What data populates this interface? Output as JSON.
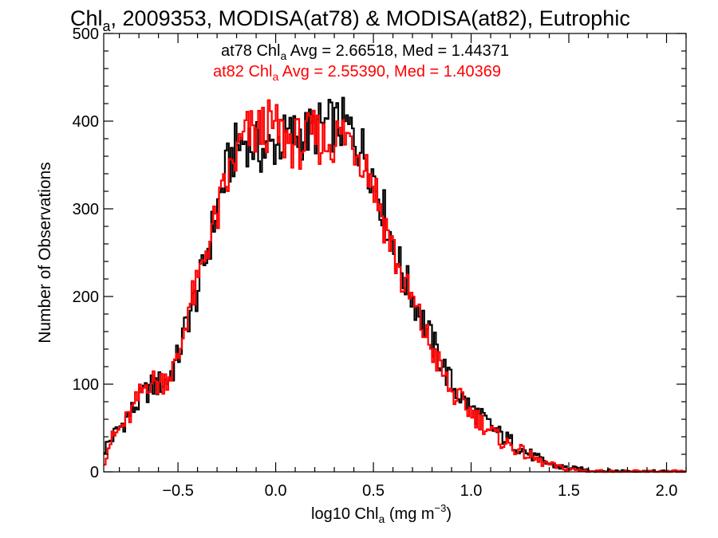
{
  "chart_data": {
    "type": "line",
    "step": true,
    "title": {
      "prefix": "Chl",
      "sub": "a",
      "rest": ", 2009353, MODISA(at78) & MODISA(at82), Eutrophic"
    },
    "xlabel": {
      "prefix": "log10 Chl",
      "sub": "a",
      "mid": " (mg m",
      "sup": "−3",
      "end": ")"
    },
    "ylabel": "Number of Observations",
    "xlim": [
      -0.88,
      2.1
    ],
    "ylim": [
      0,
      500
    ],
    "xticks": [
      -0.5,
      0.0,
      0.5,
      1.0,
      1.5,
      2.0
    ],
    "xtick_labels": [
      "−0.5",
      "0.0",
      "0.5",
      "1.0",
      "1.5",
      "2.0"
    ],
    "yticks": [
      0,
      100,
      200,
      300,
      400,
      500
    ],
    "ytick_labels": [
      "0",
      "100",
      "200",
      "300",
      "400",
      "500"
    ],
    "annotations": [
      {
        "prefix": "at78 Chl",
        "sub": "a",
        "rest": " Avg = 2.66518, Med = 1.44371",
        "color": "#000000"
      },
      {
        "prefix": "at82 Chl",
        "sub": "a",
        "rest": " Avg = 2.55390, Med = 1.40369",
        "color": "#ff0000"
      }
    ],
    "anchors": {
      "x": [
        -0.88,
        -0.85,
        -0.8,
        -0.75,
        -0.7,
        -0.65,
        -0.6,
        -0.55,
        -0.5,
        -0.45,
        -0.4,
        -0.35,
        -0.3,
        -0.25,
        -0.2,
        -0.15,
        -0.1,
        -0.05,
        0.0,
        0.05,
        0.1,
        0.15,
        0.2,
        0.25,
        0.3,
        0.35,
        0.4,
        0.45,
        0.5,
        0.55,
        0.6,
        0.65,
        0.7,
        0.75,
        0.8,
        0.85,
        0.9,
        0.95,
        1.0,
        1.05,
        1.1,
        1.15,
        1.2,
        1.25,
        1.3,
        1.35,
        1.4,
        1.45,
        1.5,
        1.6,
        1.7,
        1.8,
        1.9,
        2.0,
        2.1
      ],
      "series": [
        {
          "name": "at78",
          "color": "#000000",
          "values": [
            25,
            35,
            50,
            65,
            80,
            95,
            100,
            105,
            130,
            175,
            205,
            250,
            300,
            345,
            370,
            380,
            370,
            365,
            375,
            380,
            385,
            385,
            390,
            395,
            395,
            395,
            385,
            365,
            340,
            300,
            260,
            225,
            200,
            175,
            148,
            125,
            100,
            85,
            72,
            62,
            52,
            42,
            35,
            28,
            20,
            14,
            9,
            6,
            4,
            2,
            1,
            1,
            0,
            0,
            0
          ]
        },
        {
          "name": "at82",
          "color": "#ff0000",
          "values": [
            10,
            33,
            48,
            62,
            85,
            105,
            100,
            110,
            125,
            185,
            210,
            260,
            290,
            330,
            360,
            385,
            385,
            395,
            390,
            380,
            375,
            375,
            385,
            375,
            380,
            385,
            375,
            360,
            330,
            290,
            255,
            215,
            195,
            165,
            140,
            115,
            90,
            80,
            68,
            58,
            46,
            36,
            30,
            24,
            18,
            12,
            8,
            5,
            3,
            1,
            0,
            0,
            0,
            0,
            0
          ]
        }
      ]
    }
  }
}
